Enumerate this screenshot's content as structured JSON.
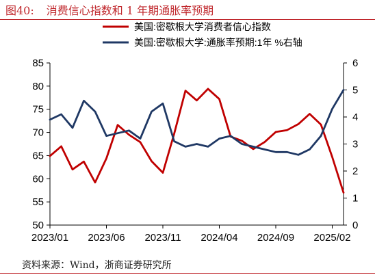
{
  "figure": {
    "number": "图40:",
    "title": "消费信心指数和 1 年期通胀率预期",
    "source": "资料来源：Wind，浙商证券研究所"
  },
  "colors": {
    "red": "#c00000",
    "navy": "#1f3864",
    "accent": "#c0282d"
  },
  "chart_data": {
    "type": "line",
    "x_tick_labels": [
      "2023/01",
      "2023/06",
      "2023/11",
      "2024/04",
      "2024/09",
      "2025/02"
    ],
    "categories": [
      "2023/01",
      "2023/02",
      "2023/03",
      "2023/04",
      "2023/05",
      "2023/06",
      "2023/07",
      "2023/08",
      "2023/09",
      "2023/10",
      "2023/11",
      "2023/12",
      "2024/01",
      "2024/02",
      "2024/03",
      "2024/04",
      "2024/05",
      "2024/06",
      "2024/07",
      "2024/08",
      "2024/09",
      "2024/10",
      "2024/11",
      "2024/12",
      "2025/01",
      "2025/02",
      "2025/03"
    ],
    "series": [
      {
        "name": "美国:密歇根大学消费者信心指数",
        "axis": "left",
        "color": "#c00000",
        "values": [
          64.9,
          67.0,
          62.0,
          63.7,
          59.2,
          64.4,
          71.6,
          69.5,
          67.9,
          63.8,
          61.3,
          69.7,
          79.0,
          76.9,
          79.4,
          77.2,
          69.1,
          68.2,
          66.4,
          67.9,
          70.1,
          70.5,
          71.8,
          74.0,
          71.7,
          64.7,
          57.0
        ]
      },
      {
        "name": "美国:密歇根大学:通胀率预期:1年 %右轴",
        "axis": "right",
        "color": "#1f3864",
        "values": [
          3.9,
          4.1,
          3.6,
          4.6,
          4.2,
          3.3,
          3.4,
          3.5,
          3.2,
          4.2,
          4.5,
          3.1,
          2.9,
          3.0,
          2.9,
          3.2,
          3.3,
          3.0,
          2.9,
          2.8,
          2.7,
          2.7,
          2.6,
          2.8,
          3.3,
          4.3,
          5.0
        ]
      }
    ],
    "left_axis": {
      "min": 50,
      "max": 85,
      "ticks": [
        "50",
        "55",
        "60",
        "65",
        "70",
        "75",
        "80",
        "85"
      ]
    },
    "right_axis": {
      "min": 0,
      "max": 6,
      "ticks": [
        "0",
        "1",
        "2",
        "3",
        "4",
        "5",
        "6"
      ]
    },
    "legend": "top-center",
    "grid": false
  }
}
